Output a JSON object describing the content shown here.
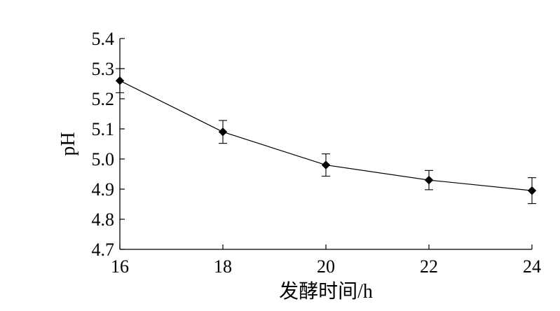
{
  "chart_data": {
    "type": "line",
    "title": "",
    "xlabel": "发酵时间/h",
    "ylabel": "pH",
    "x": [
      16,
      18,
      20,
      22,
      24
    ],
    "series": [
      {
        "values": [
          5.26,
          5.09,
          4.98,
          4.93,
          4.895
        ],
        "error": [
          0.04,
          0.038,
          0.037,
          0.032,
          0.043
        ]
      }
    ],
    "xlim": [
      16,
      24
    ],
    "ylim": [
      4.7,
      5.4
    ],
    "xticks": [
      "16",
      "18",
      "20",
      "22",
      "24"
    ],
    "yticks": [
      "4.7",
      "4.8",
      "4.9",
      "5.0",
      "5.1",
      "5.2",
      "5.3",
      "5.4"
    ],
    "marker": "diamond",
    "grid": false,
    "legend": "none",
    "colors": {
      "line": "#000000",
      "marker": "#000000"
    }
  }
}
